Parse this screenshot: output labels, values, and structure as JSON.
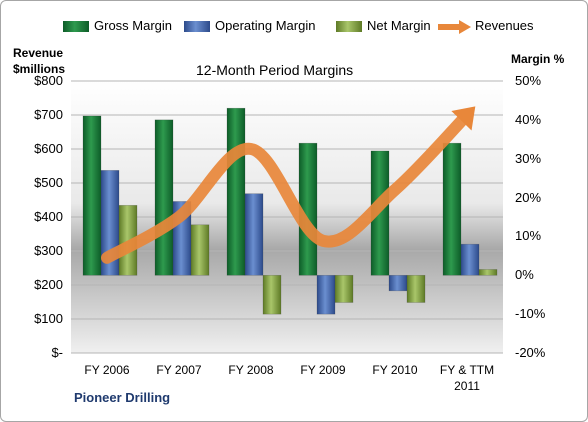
{
  "chart_data": {
    "type": "bar",
    "title": "12-Month Period Margins",
    "categories": [
      "FY 2006",
      "FY 2007",
      "FY 2008",
      "FY 2009",
      "FY 2010",
      "FY & TTM 2011"
    ],
    "series": [
      {
        "name": "Gross Margin",
        "axis": "right",
        "unit": "%",
        "values": [
          41,
          40,
          43,
          34,
          32,
          34
        ],
        "color": "#1f7a3a"
      },
      {
        "name": "Operating Margin",
        "axis": "right",
        "unit": "%",
        "values": [
          27,
          19,
          21,
          -10,
          -4,
          8
        ],
        "color": "#4a6fb5"
      },
      {
        "name": "Net Margin",
        "axis": "right",
        "unit": "%",
        "values": [
          18,
          13,
          -10,
          -7,
          -7,
          1.5
        ],
        "color": "#8fae4a"
      },
      {
        "name": "Revenues",
        "axis": "left",
        "unit": "$millions",
        "type": "line",
        "values": [
          280,
          400,
          600,
          330,
          480,
          700
        ],
        "color": "#e8873a"
      }
    ],
    "y_left": {
      "label": "Revenue $millions",
      "ylim": [
        0,
        800
      ],
      "ticks": [
        "$800",
        "$700",
        "$600",
        "$500",
        "$400",
        "$300",
        "$200",
        "$100",
        "$-"
      ]
    },
    "y_right": {
      "label": "Margin %",
      "ylim": [
        -20,
        50
      ],
      "ticks": [
        "50%",
        "40%",
        "30%",
        "20%",
        "10%",
        "0%",
        "-10%",
        "-20%"
      ]
    },
    "grid": true,
    "legend_position": "top"
  },
  "legend": {
    "gross": "Gross Margin",
    "operating": "Operating Margin",
    "net": "Net Margin",
    "revenues": "Revenues"
  },
  "labels": {
    "y_left_line1": "Revenue",
    "y_left_line2": "$millions",
    "y_right": "Margin %",
    "title": "12-Month Period Margins",
    "company": "Pioneer Drilling"
  },
  "x_ticks": [
    {
      "line1": "FY 2006",
      "line2": ""
    },
    {
      "line1": "FY 2007",
      "line2": ""
    },
    {
      "line1": "FY 2008",
      "line2": ""
    },
    {
      "line1": "FY 2009",
      "line2": ""
    },
    {
      "line1": "FY 2010",
      "line2": ""
    },
    {
      "line1": "FY & TTM",
      "line2": "2011"
    }
  ]
}
